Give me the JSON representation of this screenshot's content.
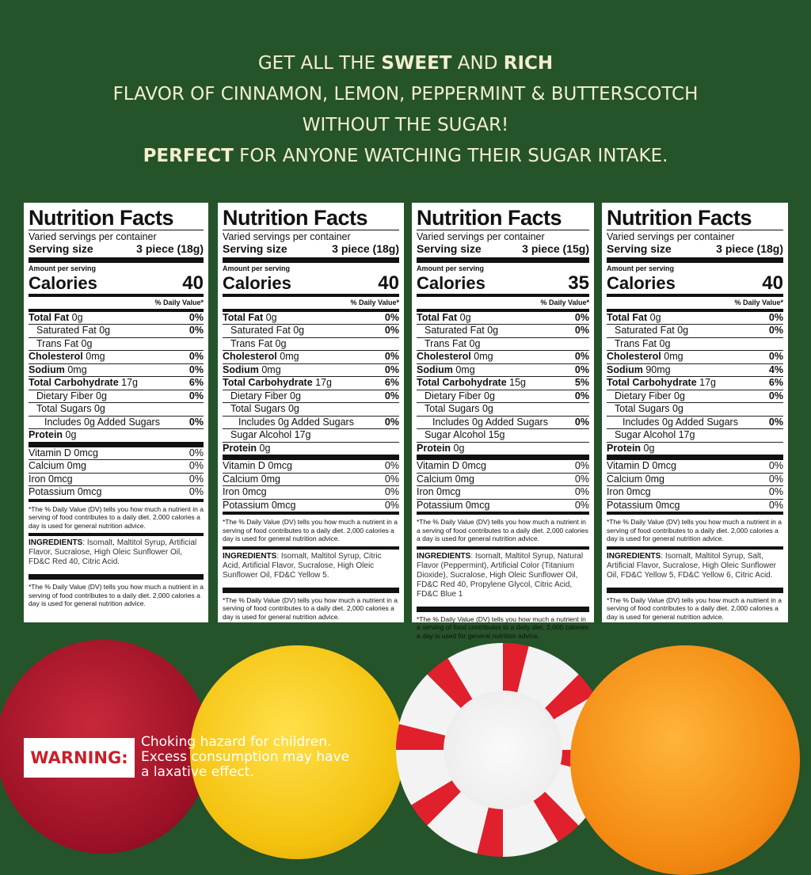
{
  "headline": {
    "l1a": "GET ALL THE ",
    "l1b": "SWEET",
    "l1c": " AND ",
    "l1d": "RICH",
    "l2": "FLAVOR OF CINNAMON, LEMON, PEPPERMINT & BUTTERSCOTCH",
    "l3": "WITHOUT THE SUGAR!",
    "l4a": "PERFECT",
    "l4b": " FOR ANYONE WATCHING THEIR SUGAR INTAKE."
  },
  "labels": [
    {
      "title": "Nutrition Facts",
      "servings": "Varied servings per container",
      "serving_label": "Serving size",
      "serving_size": "3 piece (18g)",
      "amount": "Amount per serving",
      "calories_label": "Calories",
      "calories": "40",
      "dv": "% Daily Value*",
      "rows": [
        [
          "Total Fat",
          "0g",
          "0%",
          0,
          "med"
        ],
        [
          "Saturated Fat 0g",
          "",
          "0%",
          1
        ],
        [
          "Trans Fat 0g",
          "",
          "",
          1
        ],
        [
          "Cholesterol",
          "0mg",
          "0%",
          0
        ],
        [
          "Sodium",
          "0mg",
          "0%",
          0
        ],
        [
          "Total Carbohydrate",
          "17g",
          "6%",
          0
        ],
        [
          "Dietary Fiber 0g",
          "",
          "0%",
          1
        ],
        [
          "Total Sugars 0g",
          "",
          "",
          1
        ],
        [
          "Includes 0g Added Sugars",
          "",
          "0%",
          2
        ],
        [
          "Protein",
          "0g",
          "",
          0
        ],
        [
          "Vitamin D 0mcg",
          "",
          "0%",
          -1,
          "thick"
        ],
        [
          "Calcium 0mg",
          "",
          "0%",
          -1
        ],
        [
          "Iron 0mcg",
          "",
          "0%",
          -1
        ],
        [
          "Potassium 0mcg",
          "",
          "0%",
          -1
        ]
      ],
      "footnote": "*The % Daily Value (DV) tells you how much a nutrient in a serving of food contributes to a daily diet. 2,000 calories a day is used for general nutrition advice.",
      "ingredients_label": "INGREDIENTS",
      "ingredients": ": Isomalt, Maltitol Syrup, Artificial Flavor, Sucralose, High Oleic Sunflower Oil, FD&C Red 40, Citric Acid."
    },
    {
      "title": "Nutrition Facts",
      "servings": "Varied servings per container",
      "serving_label": "Serving size",
      "serving_size": "3 piece (18g)",
      "amount": "Amount per serving",
      "calories_label": "Calories",
      "calories": "40",
      "dv": "% Daily Value*",
      "rows": [
        [
          "Total Fat",
          "0g",
          "0%",
          0,
          "med"
        ],
        [
          "Saturated Fat 0g",
          "",
          "0%",
          1
        ],
        [
          "Trans Fat 0g",
          "",
          "",
          1
        ],
        [
          "Cholesterol",
          "0mg",
          "0%",
          0
        ],
        [
          "Sodium",
          "0mg",
          "0%",
          0
        ],
        [
          "Total Carbohydrate",
          "17g",
          "6%",
          0
        ],
        [
          "Dietary Fiber 0g",
          "",
          "0%",
          1
        ],
        [
          "Total Sugars 0g",
          "",
          "",
          1
        ],
        [
          "Includes 0g Added Sugars",
          "",
          "0%",
          2
        ],
        [
          "Sugar Alcohol 17g",
          "",
          "",
          1
        ],
        [
          "Protein",
          "0g",
          "",
          0
        ],
        [
          "Vitamin D 0mcg",
          "",
          "0%",
          -1,
          "thick"
        ],
        [
          "Calcium 0mg",
          "",
          "0%",
          -1
        ],
        [
          "Iron 0mcg",
          "",
          "0%",
          -1
        ],
        [
          "Potassium 0mcg",
          "",
          "0%",
          -1
        ]
      ],
      "footnote": "*The % Daily Value (DV) tells you how much a nutrient in a serving of food contributes to a daily diet. 2,000 calories a day is used for general nutrition advice.",
      "ingredients_label": "INGREDIENTS",
      "ingredients": ": Isomalt, Maltitol Syrup, Citric Acid, Artificial Flavor, Sucralose, High Oleic Sunflower Oil, FD&C Yellow 5."
    },
    {
      "title": "Nutrition Facts",
      "servings": "Varied servings per container",
      "serving_label": "Serving size",
      "serving_size": "3 piece (15g)",
      "amount": "Amount per serving",
      "calories_label": "Calories",
      "calories": "35",
      "dv": "% Daily Value*",
      "rows": [
        [
          "Total Fat",
          "0g",
          "0%",
          0,
          "med"
        ],
        [
          "Saturated Fat 0g",
          "",
          "0%",
          1
        ],
        [
          "Trans Fat 0g",
          "",
          "",
          1
        ],
        [
          "Cholesterol",
          "0mg",
          "0%",
          0
        ],
        [
          "Sodium",
          "0mg",
          "0%",
          0
        ],
        [
          "Total Carbohydrate",
          "15g",
          "5%",
          0
        ],
        [
          "Dietary Fiber 0g",
          "",
          "0%",
          1
        ],
        [
          "Total Sugars 0g",
          "",
          "",
          1
        ],
        [
          "Includes 0g Added Sugars",
          "",
          "0%",
          2
        ],
        [
          "Sugar Alcohol 15g",
          "",
          "",
          1
        ],
        [
          "Protein",
          "0g",
          "",
          0
        ],
        [
          "Vitamin D 0mcg",
          "",
          "0%",
          -1,
          "thick"
        ],
        [
          "Calcium 0mg",
          "",
          "0%",
          -1
        ],
        [
          "Iron 0mcg",
          "",
          "0%",
          -1
        ],
        [
          "Potassium 0mcg",
          "",
          "0%",
          -1
        ]
      ],
      "footnote": "*The % Daily Value (DV) tells you how much a nutrient in a serving of food contributes to a daily diet. 2,000 calories a day is used for general nutrition advice.",
      "ingredients_label": "INGREDIENTS",
      "ingredients": ": Isomalt, Maltitol Syrup, Natural Flavor (Peppermint), Artificial Color (Titanium Dioxide), Sucralose, High Oleic Sunflower Oil, FD&C Red 40, Propylene Glycol, Citric Acid, FD&C Blue 1"
    },
    {
      "title": "Nutrition Facts",
      "servings": "Varied servings per container",
      "serving_label": "Serving size",
      "serving_size": "3 piece (18g)",
      "amount": "Amount per serving",
      "calories_label": "Calories",
      "calories": "40",
      "dv": "% Daily Value*",
      "rows": [
        [
          "Total Fat",
          "0g",
          "0%",
          0,
          "med"
        ],
        [
          "Saturated Fat 0g",
          "",
          "0%",
          1
        ],
        [
          "Trans Fat 0g",
          "",
          "",
          1
        ],
        [
          "Cholesterol",
          "0mg",
          "0%",
          0
        ],
        [
          "Sodium",
          "90mg",
          "4%",
          0
        ],
        [
          "Total Carbohydrate",
          "17g",
          "6%",
          0
        ],
        [
          "Dietary Fiber 0g",
          "",
          "0%",
          1
        ],
        [
          "Total Sugars 0g",
          "",
          "",
          1
        ],
        [
          "Includes 0g Added Sugars",
          "",
          "0%",
          2
        ],
        [
          "Sugar Alcohol 17g",
          "",
          "",
          1
        ],
        [
          "Protein",
          "0g",
          "",
          0
        ],
        [
          "Vitamin D 0mcg",
          "",
          "0%",
          -1,
          "thick"
        ],
        [
          "Calcium 0mg",
          "",
          "0%",
          -1
        ],
        [
          "Iron 0mcg",
          "",
          "0%",
          -1
        ],
        [
          "Potassium 0mcg",
          "",
          "0%",
          -1
        ]
      ],
      "footnote": "*The % Daily Value (DV) tells you how much a nutrient in a serving of food contributes to a daily diet. 2,000 calories a day is used for general nutrition advice.",
      "ingredients_label": "INGREDIENTS",
      "ingredients": ": Isomalt, Maltitol Syrup, Salt, Artificial Flavor, Sucralose, High Oleic Sunflower Oil, FD&C Yellow 5, FD&C Yellow 6, Citric Acid."
    }
  ],
  "warning": {
    "label": "WARNING:",
    "l1": "Choking hazard for children.",
    "l2": "Excess consumption may have",
    "l3": "a laxative effect."
  },
  "colors": {
    "background": "#25532a",
    "headline": "#f4efcf",
    "warning": "#c8202a",
    "cinnamon": "#b0172c",
    "lemon": "#f4c20f",
    "peppermint_stripe": "#e0202c",
    "butterscotch": "#f38a12"
  }
}
